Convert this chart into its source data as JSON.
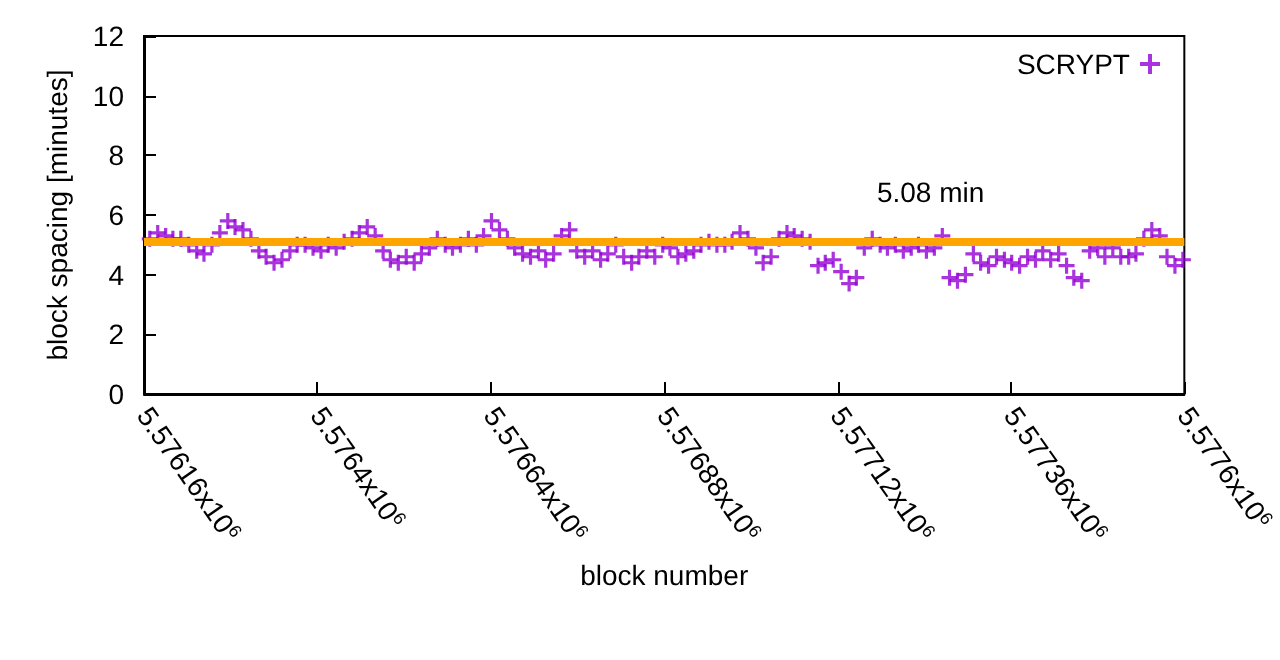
{
  "chart_data": {
    "type": "scatter",
    "xlabel": "block number",
    "ylabel": "block spacing [minutes]",
    "xlim": [
      5576160,
      5577600
    ],
    "ylim": [
      0,
      12
    ],
    "xticks": [
      {
        "value": 5576160,
        "label": "5.57616x10$^{6}$"
      },
      {
        "value": 5576400,
        "label": "5.5764x10$^{6}$"
      },
      {
        "value": 5576640,
        "label": "5.57664x10$^{6}$"
      },
      {
        "value": 5576880,
        "label": "5.57688x10$^{6}$"
      },
      {
        "value": 5577120,
        "label": "5.57712x10$^{6}$"
      },
      {
        "value": 5577360,
        "label": "5.57736x10$^{6}$"
      },
      {
        "value": 5577600,
        "label": "5.5776x10$^{6}$"
      }
    ],
    "yticks": [
      0,
      2,
      4,
      6,
      8,
      10,
      12
    ],
    "grid": false,
    "legend": "top right",
    "marker": "cross",
    "ref_lines": [
      {
        "axis": "y",
        "value": 5.08,
        "label": "5.08 min",
        "color": "#ffa500"
      }
    ],
    "x": [
      5576168,
      5576179,
      5576190,
      5576200,
      5576211,
      5576222,
      5576233,
      5576243,
      5576254,
      5576265,
      5576276,
      5576286,
      5576297,
      5576308,
      5576319,
      5576329,
      5576340,
      5576351,
      5576362,
      5576372,
      5576383,
      5576394,
      5576405,
      5576415,
      5576426,
      5576437,
      5576448,
      5576458,
      5576469,
      5576480,
      5576491,
      5576501,
      5576512,
      5576523,
      5576534,
      5576544,
      5576555,
      5576566,
      5576577,
      5576587,
      5576598,
      5576609,
      5576620,
      5576630,
      5576641,
      5576652,
      5576663,
      5576673,
      5576684,
      5576695,
      5576706,
      5576716,
      5576727,
      5576738,
      5576749,
      5576759,
      5576770,
      5576781,
      5576792,
      5576802,
      5576813,
      5576824,
      5576835,
      5576845,
      5576856,
      5576867,
      5576878,
      5576888,
      5576899,
      5576910,
      5576921,
      5576931,
      5576942,
      5576953,
      5576964,
      5576974,
      5576985,
      5576996,
      5577007,
      5577017,
      5577028,
      5577039,
      5577050,
      5577060,
      5577071,
      5577082,
      5577093,
      5577103,
      5577114,
      5577125,
      5577136,
      5577146,
      5577157,
      5577168,
      5577179,
      5577189,
      5577200,
      5577211,
      5577222,
      5577232,
      5577243,
      5577254,
      5577265,
      5577275,
      5577286,
      5577297,
      5577308,
      5577318,
      5577329,
      5577340,
      5577351,
      5577361,
      5577372,
      5577383,
      5577394,
      5577404,
      5577415,
      5577426,
      5577437,
      5577447,
      5577458,
      5577469,
      5577480,
      5577490,
      5577501,
      5577512,
      5577523,
      5577533,
      5577544,
      5577555,
      5577566,
      5577576,
      5577587,
      5577598
    ],
    "series": [
      {
        "name": "SCRYPT",
        "color": "#9400d3",
        "values": [
          5.2,
          5.4,
          5.3,
          5.2,
          5.2,
          5.0,
          4.8,
          4.7,
          5.0,
          5.4,
          5.8,
          5.6,
          5.5,
          5.2,
          4.8,
          4.6,
          4.4,
          4.5,
          4.8,
          5.0,
          5.0,
          4.9,
          4.8,
          5.0,
          4.9,
          5.1,
          5.2,
          5.4,
          5.6,
          5.3,
          4.8,
          4.5,
          4.4,
          4.6,
          4.4,
          4.7,
          4.9,
          5.2,
          5.0,
          4.9,
          5.0,
          5.2,
          5.0,
          5.3,
          5.8,
          5.5,
          5.2,
          4.9,
          4.7,
          4.6,
          4.8,
          4.5,
          4.7,
          5.3,
          5.5,
          4.8,
          4.6,
          4.8,
          4.5,
          4.7,
          5.0,
          4.6,
          4.4,
          4.6,
          4.8,
          4.6,
          5.0,
          4.9,
          4.6,
          4.7,
          4.8,
          5.0,
          5.1,
          5.0,
          5.0,
          5.1,
          5.4,
          5.2,
          4.9,
          4.4,
          4.6,
          5.2,
          5.4,
          5.3,
          5.2,
          5.1,
          4.3,
          4.4,
          4.5,
          4.1,
          3.7,
          3.9,
          4.9,
          5.2,
          5.0,
          4.9,
          5.0,
          4.8,
          4.9,
          5.0,
          4.8,
          4.9,
          5.3,
          3.9,
          3.8,
          4.0,
          4.7,
          4.4,
          4.3,
          4.6,
          4.5,
          4.4,
          4.3,
          4.6,
          4.5,
          4.8,
          4.5,
          4.7,
          4.3,
          3.9,
          3.8,
          4.8,
          4.9,
          4.6,
          4.9,
          4.6,
          4.6,
          4.7,
          5.2,
          5.5,
          5.3,
          4.6,
          4.3,
          4.5
        ]
      }
    ]
  }
}
